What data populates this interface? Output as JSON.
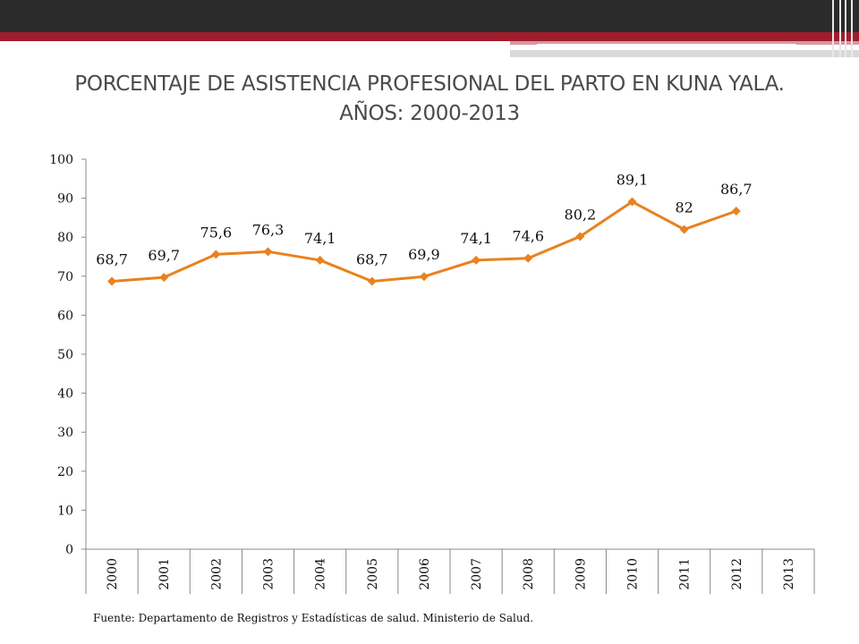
{
  "slide": {
    "title_line1": "PORCENTAJE DE ASISTENCIA PROFESIONAL DEL PARTO EN KUNA YALA.",
    "title_line2": "AÑOS: 2000-2013",
    "source": "Fuente: Departamento de Registros y Estadísticas de salud. Ministerio de Salud.",
    "accent_color": "#a01d2c",
    "header_color": "#2b2b2b"
  },
  "chart_data": {
    "type": "line",
    "title": "PORCENTAJE DE ASISTENCIA PROFESIONAL DEL PARTO EN KUNA YALA. AÑOS: 2000-2013",
    "categories": [
      "2000",
      "2001",
      "2002",
      "2003",
      "2004",
      "2005",
      "2006",
      "2007",
      "2008",
      "2009",
      "2010",
      "2011",
      "2012",
      "2013"
    ],
    "series": [
      {
        "color": "#e8821e",
        "marker": "diamond",
        "values": [
          68.7,
          69.7,
          75.6,
          76.3,
          74.1,
          68.7,
          69.9,
          74.1,
          74.6,
          80.2,
          89.1,
          82,
          86.7,
          null
        ],
        "labels": [
          "68,7",
          "69,7",
          "75,6",
          "76,3",
          "74,1",
          "68,7",
          "69,9",
          "74,1",
          "74,6",
          "80,2",
          "89,1",
          "82",
          "86,7",
          ""
        ]
      }
    ],
    "ylim": [
      0,
      100
    ],
    "yticks": [
      "0",
      "10",
      "20",
      "30",
      "40",
      "50",
      "60",
      "70",
      "80",
      "90",
      "100"
    ],
    "grid": false,
    "legend": "none"
  }
}
